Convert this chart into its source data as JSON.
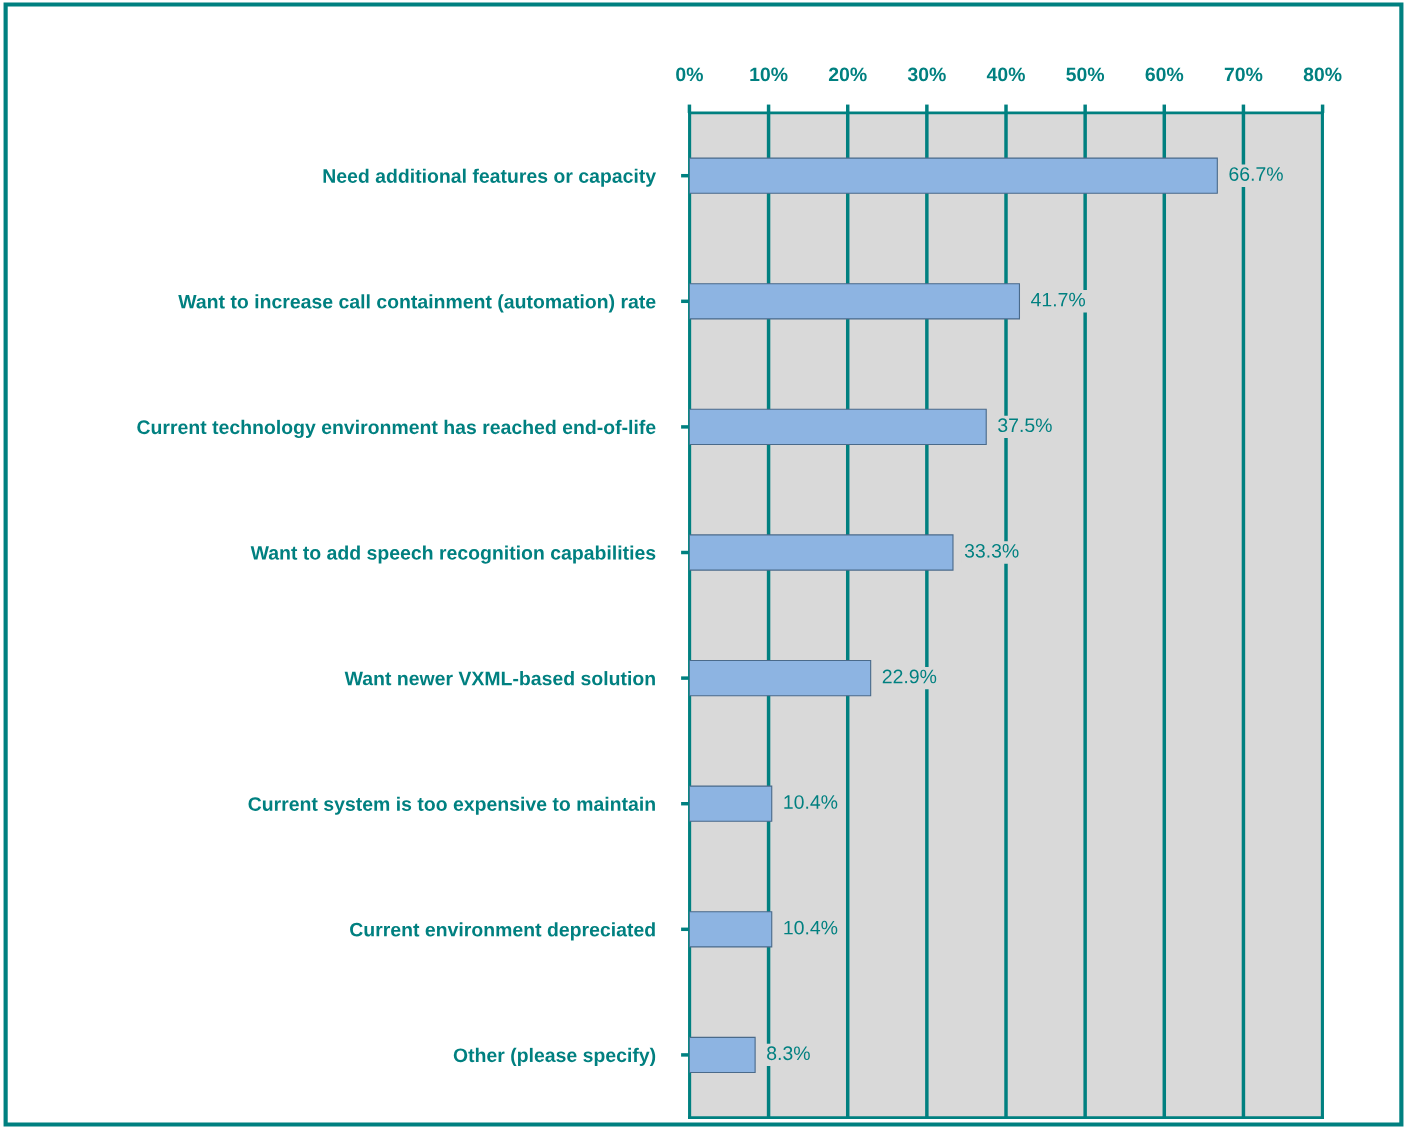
{
  "chart_data": {
    "type": "bar",
    "orientation": "horizontal",
    "categories": [
      "Need additional features or capacity",
      "Want to increase call containment (automation) rate",
      "Current technology environment has reached end-of-life",
      "Want to add speech recognition capabilities",
      "Want newer VXML-based solution",
      "Current system is too expensive to maintain",
      "Current environment depreciated",
      "Other (please specify)"
    ],
    "values": [
      66.7,
      41.7,
      37.5,
      33.3,
      22.9,
      10.4,
      10.4,
      8.3
    ],
    "value_labels": [
      "66.7%",
      "41.7%",
      "37.5%",
      "33.3%",
      "22.9%",
      "10.4%",
      "10.4%",
      "8.3%"
    ],
    "color": "#8db4e2",
    "xlim": [
      0,
      80
    ],
    "xticks": [
      {
        "value": 0,
        "label": "0%"
      },
      {
        "value": 10,
        "label": "10%"
      },
      {
        "value": 20,
        "label": "20%"
      },
      {
        "value": 30,
        "label": "30%"
      },
      {
        "value": 40,
        "label": "40%"
      },
      {
        "value": 50,
        "label": "50%"
      },
      {
        "value": 60,
        "label": "60%"
      },
      {
        "value": 70,
        "label": "70%"
      },
      {
        "value": 80,
        "label": "80%"
      }
    ],
    "grid": "x",
    "legend": false
  }
}
